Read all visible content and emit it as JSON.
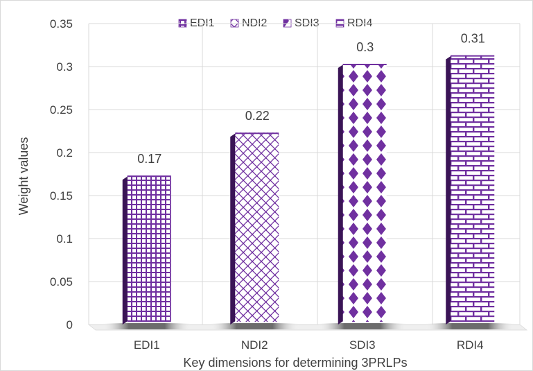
{
  "chart_data": {
    "type": "bar",
    "style": "3d-column-patterned",
    "categories": [
      "EDI1",
      "NDI2",
      "SDI3",
      "RDI4"
    ],
    "values": [
      0.17,
      0.22,
      0.3,
      0.31
    ],
    "data_labels": [
      "0.17",
      "0.22",
      "0.3",
      "0.31"
    ],
    "title": "",
    "xlabel": "Key dimensions for determining 3PRLPs",
    "ylabel": "Weight values",
    "ylim": [
      0,
      0.35
    ],
    "yticks": [
      "0",
      "0.05",
      "0.1",
      "0.15",
      "0.2",
      "0.25",
      "0.3",
      "0.35"
    ],
    "grid": true,
    "legend": {
      "position": "top",
      "entries": [
        "EDI1",
        "NDI2",
        "SDI3",
        "RDI4"
      ]
    },
    "colors": {
      "bar": "#7030a0",
      "bar_side": "#3a1456",
      "pattern_background": "#ffffff",
      "grid": "#d9d9d9",
      "text": "#404040"
    },
    "patterns": [
      "grid",
      "diamond-lattice",
      "diamond-dots",
      "brick"
    ]
  }
}
